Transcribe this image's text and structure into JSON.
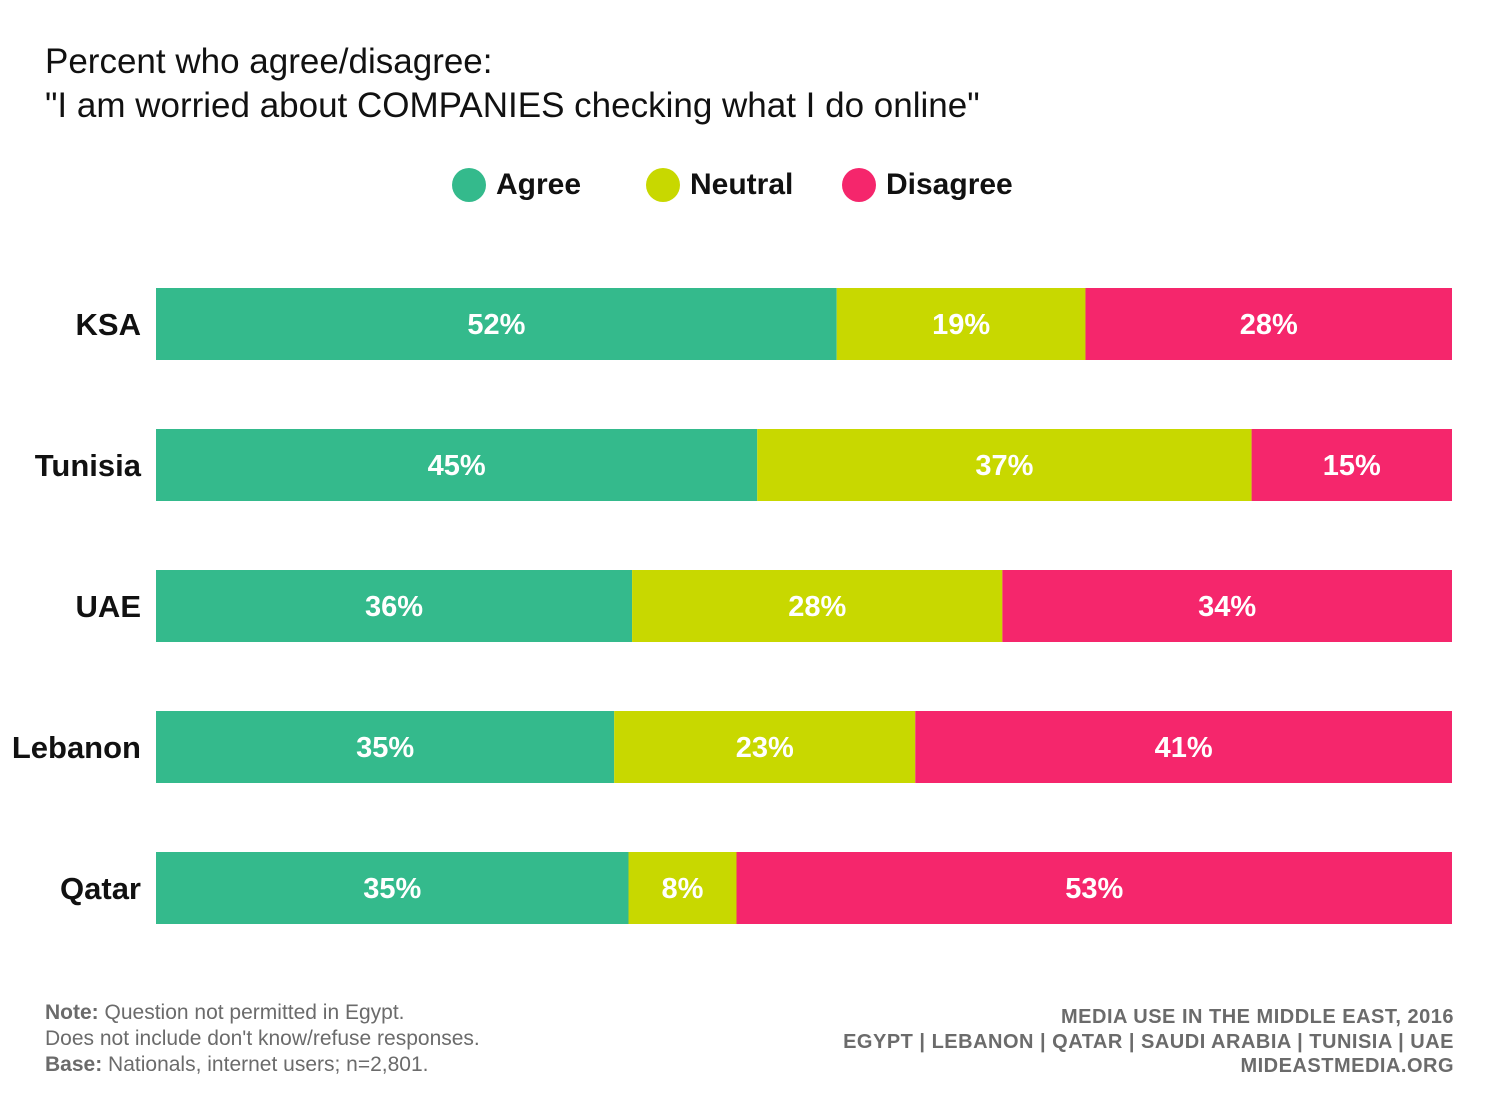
{
  "chart_data": {
    "type": "bar",
    "orientation": "horizontal",
    "stacked": true,
    "title": "Percent who agree/disagree:",
    "subtitle": "\"I am worried about COMPANIES checking what I do online\"",
    "categories": [
      "KSA",
      "Tunisia",
      "UAE",
      "Lebanon",
      "Qatar"
    ],
    "series": [
      {
        "name": "Agree",
        "color": "#34ba8c",
        "values": [
          52,
          45,
          36,
          35,
          35
        ]
      },
      {
        "name": "Neutral",
        "color": "#c8d800",
        "values": [
          19,
          37,
          28,
          23,
          8
        ]
      },
      {
        "name": "Disagree",
        "color": "#f5266c",
        "values": [
          28,
          15,
          34,
          41,
          53
        ]
      }
    ],
    "legend_position": "top-center",
    "grid": false
  },
  "footer": {
    "note_label": "Note:",
    "note_text": "Question not permitted in Egypt.",
    "note_line2": "Does not include don't know/refuse responses.",
    "base_label": "Base:",
    "base_text": "Nationals, internet users; n=2,801.",
    "source_line1": "MEDIA USE IN THE MIDDLE EAST, 2016",
    "source_line2": "EGYPT | LEBANON | QATAR | SAUDI ARABIA | TUNISIA | UAE",
    "source_line3": "MIDEASTMEDIA.ORG"
  }
}
